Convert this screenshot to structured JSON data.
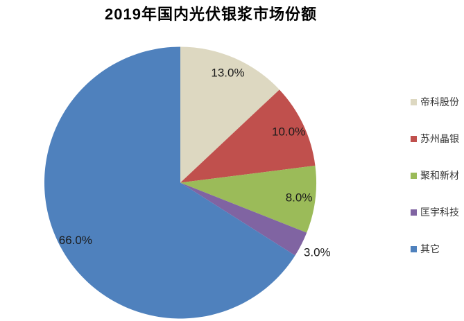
{
  "chart_data": {
    "type": "pie",
    "title": "2019年国内光伏银浆市场份额",
    "categories": [
      "帝科股份",
      "苏州晶银",
      "聚和新材",
      "匡宇科技",
      "其它"
    ],
    "values": [
      13.0,
      10.0,
      8.0,
      3.0,
      66.0
    ],
    "labels": [
      "13.0%",
      "10.0%",
      "8.0%",
      "3.0%",
      "66.0%"
    ],
    "colors": [
      "#DDD8C1",
      "#C0504D",
      "#9BBB59",
      "#8064A2",
      "#4F81BD"
    ],
    "start_angle_deg": 0,
    "direction": "clockwise",
    "legend_position": "right",
    "label_color": "#1a1a1a",
    "label_radius_fraction": [
      0.88,
      0.88,
      0.88,
      1.13,
      0.88
    ],
    "background": "#ffffff"
  }
}
